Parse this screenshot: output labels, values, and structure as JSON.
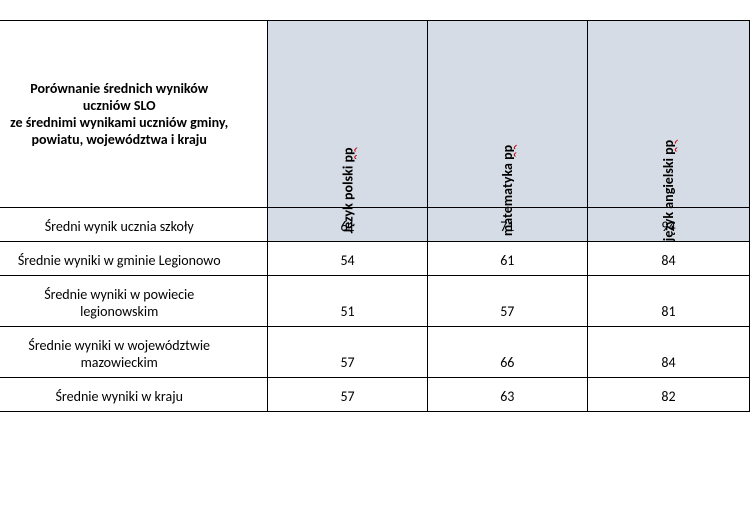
{
  "table": {
    "header_title_line1": "Porównanie średnich wyników",
    "header_title_line2": "uczniów SLO",
    "header_title_line3": "ze średnimi wynikami uczniów gminy,",
    "header_title_line4": "powiatu, województwa i kraju",
    "columns": [
      {
        "prefix": "Język polski ",
        "suffix": "pp"
      },
      {
        "prefix": "matematyka ",
        "suffix": "pp"
      },
      {
        "prefix": "język angielski ",
        "suffix": "pp"
      }
    ],
    "rows": [
      {
        "label": "Średni wynik ucznia szkoły",
        "values": [
          "61",
          "71",
          "94"
        ],
        "highlighted": true,
        "multiline": false
      },
      {
        "label": "Średnie wyniki w gminie Legionowo",
        "values": [
          "54",
          "61",
          "84"
        ],
        "highlighted": false,
        "multiline": false
      },
      {
        "label_line1": "Średnie wyniki w powiecie",
        "label_line2": "legionowskim",
        "values": [
          "51",
          "57",
          "81"
        ],
        "highlighted": false,
        "multiline": true
      },
      {
        "label_line1": "Średnie wyniki w województwie",
        "label_line2": "mazowieckim",
        "values": [
          "57",
          "66",
          "84"
        ],
        "highlighted": false,
        "multiline": true
      },
      {
        "label": "Średnie wyniki w kraju",
        "values": [
          "57",
          "63",
          "82"
        ],
        "highlighted": false,
        "multiline": false
      }
    ]
  },
  "colors": {
    "header_bg": "#d6dce5",
    "border": "#000000",
    "squiggle": "#c00000",
    "background": "#ffffff"
  }
}
